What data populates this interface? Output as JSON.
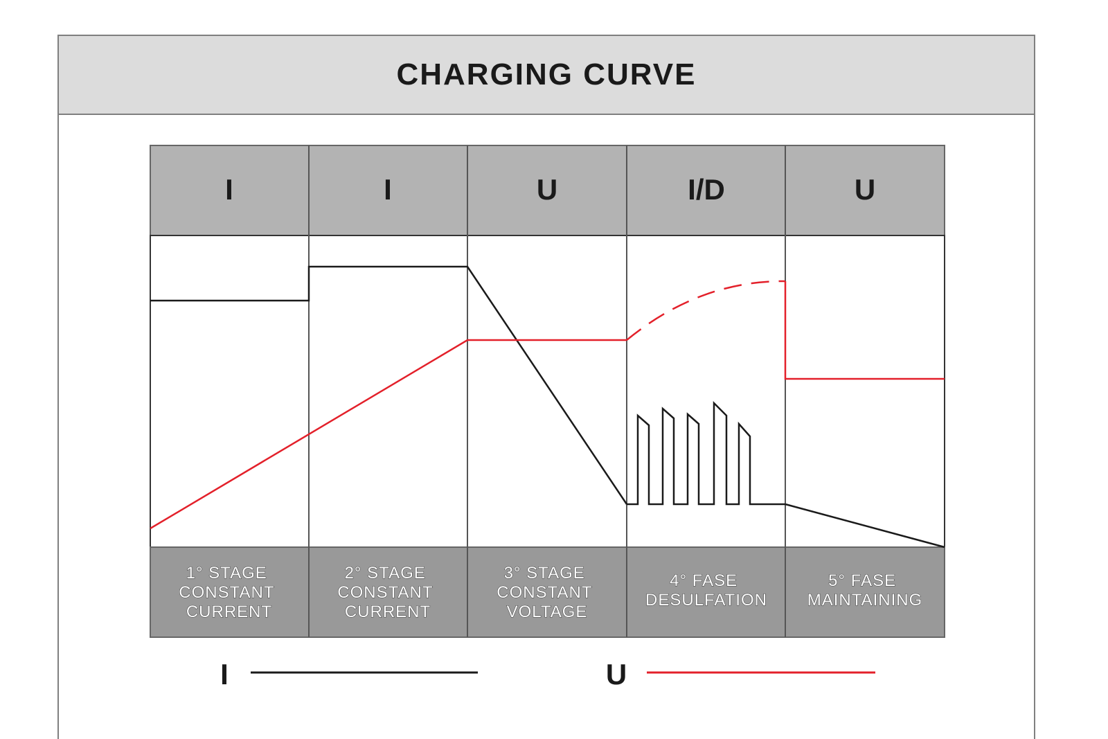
{
  "title": "CHARGING CURVE",
  "phases": [
    {
      "symbol": "I",
      "stage": [
        "1° STAGE",
        "CONSTANT",
        "CURRENT"
      ]
    },
    {
      "symbol": "I",
      "stage": [
        "2° STAGE",
        "CONSTANT",
        "CURRENT"
      ]
    },
    {
      "symbol": "U",
      "stage": [
        "3° STAGE",
        "CONSTANT",
        "VOLTAGE"
      ]
    },
    {
      "symbol": "I/D",
      "stage": [
        "4° FASE",
        "DESULFATION"
      ]
    },
    {
      "symbol": "U",
      "stage": [
        "5° FASE",
        "MAINTAINING"
      ]
    }
  ],
  "legend": [
    {
      "label": "I",
      "color": "#1a1a1a"
    },
    {
      "label": "U",
      "color": "#e3202a"
    }
  ],
  "colors": {
    "current_line": "#1a1a1a",
    "voltage_line": "#e3202a",
    "header_fill": "#b3b3b3",
    "footer_fill": "#999999",
    "title_fill": "#dcdcdc"
  }
}
